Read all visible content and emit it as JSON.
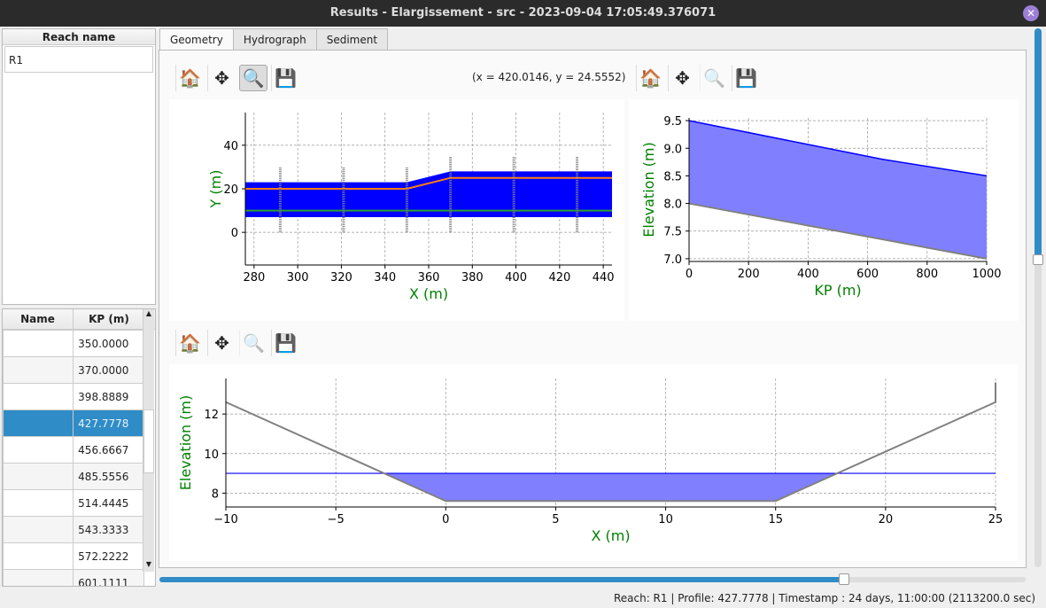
{
  "window": {
    "title": "Results - Elargissement - src - 2023-09-04 17:05:49.376071",
    "close_icon": "close-icon"
  },
  "reach_panel": {
    "header": "Reach name",
    "items": [
      "R1"
    ]
  },
  "profile_table": {
    "headers": [
      "Name",
      "KP (m)"
    ],
    "rows": [
      [
        "",
        "350.0000"
      ],
      [
        "",
        "370.0000"
      ],
      [
        "",
        "398.8889"
      ],
      [
        "",
        "427.7778"
      ],
      [
        "",
        "456.6667"
      ],
      [
        "",
        "485.5556"
      ],
      [
        "",
        "514.4445"
      ],
      [
        "",
        "543.3333"
      ],
      [
        "",
        "572.2222"
      ],
      [
        "",
        "601.1111"
      ]
    ],
    "selected_index": 3
  },
  "tabs": [
    {
      "label": "Geometry",
      "active": true
    },
    {
      "label": "Hydrograph"
    },
    {
      "label": "Sediment"
    }
  ],
  "toolbar": {
    "icons": [
      "home-icon",
      "pan-icon",
      "zoom-icon",
      "save-icon"
    ],
    "coords": "(x = 420.0146,   y = 24.5552)"
  },
  "colors": {
    "fill": "#0000ff",
    "fill_light": "#8080ff",
    "orange": "#ff7f0e",
    "green": "#2ca02c",
    "gray": "#808080",
    "label": "#008000",
    "accent": "#308cc6"
  },
  "status": "Reach: R1 | Profile: 427.7778 | Timestamp : 24 days, 11:00:00 (2113200.0 sec)",
  "time_slider": {
    "value_fraction": 0.79
  },
  "chart_data": [
    {
      "type": "area",
      "xlabel": "X (m)",
      "ylabel": "Y (m)",
      "xlim": [
        276,
        444
      ],
      "ylim": [
        -15,
        55
      ],
      "xticks": [
        280,
        300,
        320,
        340,
        360,
        380,
        400,
        420,
        440
      ],
      "yticks": [
        0,
        20,
        40
      ],
      "grid": true,
      "water_surface_polygon": {
        "x": [
          276,
          350,
          370,
          444
        ],
        "upper": [
          23,
          23,
          28,
          28
        ],
        "lower": [
          7,
          7,
          7,
          7
        ]
      },
      "orange_line": {
        "x": [
          276,
          350,
          370,
          444
        ],
        "y": [
          20,
          20,
          25,
          25
        ]
      },
      "green_line": {
        "x": [
          276,
          444
        ],
        "y": [
          10,
          10
        ]
      },
      "sections": [
        {
          "x": 292,
          "y": [
            0,
            30
          ]
        },
        {
          "x": 321,
          "y": [
            0,
            30
          ]
        },
        {
          "x": 350,
          "y": [
            0,
            30
          ]
        },
        {
          "x": 370,
          "y": [
            0,
            35
          ]
        },
        {
          "x": 399,
          "y": [
            0,
            35
          ]
        },
        {
          "x": 428,
          "y": [
            0,
            35
          ]
        }
      ]
    },
    {
      "type": "area",
      "xlabel": "KP (m)",
      "ylabel": "Elevation (m)",
      "xlim": [
        0,
        1000
      ],
      "ylim": [
        6.95,
        9.55
      ],
      "xticks": [
        0,
        200,
        400,
        600,
        800,
        1000
      ],
      "yticks": [
        7.0,
        7.5,
        8.0,
        8.5,
        9.0,
        9.5
      ],
      "grid": true,
      "water": {
        "x": [
          0,
          370,
          650,
          1000
        ],
        "y": [
          9.5,
          9.1,
          8.8,
          8.5
        ]
      },
      "bed": {
        "x": [
          0,
          1000
        ],
        "y": [
          8.0,
          7.0
        ]
      }
    },
    {
      "type": "area",
      "xlabel": "X (m)",
      "ylabel": "Elevation (m)",
      "xlim": [
        -10,
        25
      ],
      "ylim": [
        7.3,
        13.8
      ],
      "xticks": [
        -10,
        -5,
        0,
        5,
        10,
        15,
        20,
        25
      ],
      "yticks": [
        8,
        10,
        12
      ],
      "grid": true,
      "bed": {
        "x": [
          -10,
          0,
          15,
          25,
          25
        ],
        "y": [
          12.6,
          7.6,
          7.6,
          12.6,
          13.6
        ]
      },
      "water_level": 9.0
    }
  ]
}
